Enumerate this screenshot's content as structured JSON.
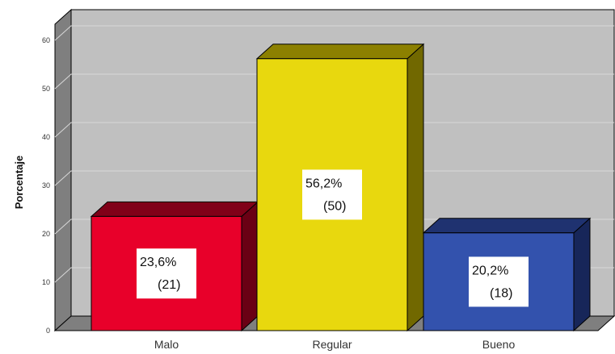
{
  "chart_data": {
    "type": "bar",
    "categories": [
      "Malo",
      "Regular",
      "Bueno"
    ],
    "values": [
      23.6,
      56.2,
      20.2
    ],
    "data_labels": [
      {
        "pct": "23,6%",
        "count": "(21)"
      },
      {
        "pct": "56,2%",
        "count": "(50)"
      },
      {
        "pct": "20,2%",
        "count": "(18)"
      }
    ],
    "colors": {
      "front": [
        "#e8002a",
        "#e8d80e",
        "#3352ad"
      ],
      "top": [
        "#800018",
        "#8c8000",
        "#1f3270"
      ],
      "side": [
        "#6a0014",
        "#716800",
        "#172659"
      ],
      "plot_bg": "#c0c0c0",
      "wall_left": "#7f7f7f",
      "floor": "#7f7f7f"
    },
    "title": "",
    "xlabel": "",
    "ylabel": "Porcentaje",
    "ylim": [
      0,
      60
    ],
    "yticks": [
      "0",
      "10",
      "20",
      "30",
      "40",
      "50",
      "60"
    ],
    "grid": true,
    "legend": "none",
    "style": "3d-bar"
  }
}
